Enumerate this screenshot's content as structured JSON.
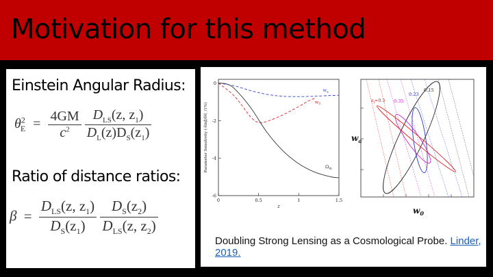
{
  "slide": {
    "title": "Motivation for this method",
    "colors": {
      "header": "#c00000",
      "background": "#000000",
      "panel": "#ffffff",
      "link": "#1a5fb4"
    }
  },
  "left": {
    "heading1": "Einstein Angular Radius:",
    "heading2": "Ratio of distance ratios:",
    "eq1": {
      "lhs": "θ",
      "lhs_sub": "E",
      "lhs_sup": "2",
      "eq": "=",
      "f1_num": "4GM",
      "f1_den": "c",
      "f1_den_sup": "2",
      "f2_num": "D",
      "f2_num_sub": "LS",
      "f2_num_args": "(z, z",
      "f2_num_args_sub": "1",
      "f2_num_close": ")",
      "f2_den": "D",
      "f2_den_sub": "L",
      "f2_den_arg": "(z)D",
      "f2_den_sub2": "S",
      "f2_den_args": "(z",
      "f2_den_args_sub": "1",
      "f2_den_close": ")"
    },
    "eq2": {
      "lhs": "β",
      "eq": "=",
      "f1_num": "D",
      "f1_num_sub": "LS",
      "f1_num_args": "(z, z",
      "f1_num_args_sub": "1",
      "f1_num_close": ")",
      "f1_den": "D",
      "f1_den_sub": "S",
      "f1_den_args": "(z",
      "f1_den_args_sub": "1",
      "f1_den_close": ")",
      "f2_num": "D",
      "f2_num_sub": "S",
      "f2_num_args": "(z",
      "f2_num_args_sub": "2",
      "f2_num_close": ")",
      "f2_den": "D",
      "f2_den_sub": "LS",
      "f2_den_args": "(z, z",
      "f2_den_args_sub": "2",
      "f2_den_close": ")"
    }
  },
  "caption": {
    "text": "Doubling Strong Lensing as a Cosmological Probe. ",
    "link": "Linder, 2019."
  },
  "chart_data": [
    {
      "type": "line",
      "xlabel": "z",
      "ylabel": "Parameter Sensitivity (-δlnβ/δθ, /1%)",
      "xlim": [
        0,
        1.5
      ],
      "ylim": [
        -6,
        0.2
      ],
      "xticks": [
        "0",
        "0.5",
        "1",
        "1.5"
      ],
      "yticks": [
        "0",
        "-2",
        "-4",
        "-6"
      ],
      "series": [
        {
          "name": "w",
          "name_sub": "a",
          "color": "#3344cc",
          "style": "dashed",
          "x": [
            0,
            0.2,
            0.4,
            0.6,
            0.8,
            1.0,
            1.2,
            1.4,
            1.5
          ],
          "y": [
            0,
            -0.15,
            -0.4,
            -0.6,
            -0.7,
            -0.72,
            -0.7,
            -0.66,
            -0.65
          ]
        },
        {
          "name": "w",
          "name_sub": "0",
          "color": "#dd2222",
          "style": "dashed",
          "x": [
            0,
            0.2,
            0.4,
            0.5,
            0.6,
            0.8,
            1.0,
            1.1,
            1.2
          ],
          "y": [
            0,
            -0.7,
            -1.8,
            -2.1,
            -2.05,
            -1.7,
            -1.25,
            -1.0,
            -0.8
          ]
        },
        {
          "name": "Ω",
          "name_sub": "m",
          "color": "#333333",
          "style": "solid",
          "x": [
            0,
            0.1,
            0.2,
            0.4,
            0.6,
            0.8,
            1.0,
            1.2,
            1.4,
            1.5
          ],
          "y": [
            0,
            -0.05,
            -0.3,
            -1.3,
            -2.6,
            -3.6,
            -4.3,
            -4.75,
            -5.0,
            -5.05
          ]
        }
      ]
    },
    {
      "type": "contour",
      "xlabel": "w",
      "xlabel_sub": "0",
      "ylabel": "w",
      "ylabel_sub": "a",
      "labels": [
        {
          "text": "z",
          "sub": "l",
          "after": "=0.5",
          "color": "#dd2222"
        },
        {
          "text": "0.35",
          "color": "#cc22cc"
        },
        {
          "text": "0.23",
          "color": "#2233cc"
        },
        {
          "text": "0.15",
          "color": "#222222"
        }
      ]
    }
  ]
}
